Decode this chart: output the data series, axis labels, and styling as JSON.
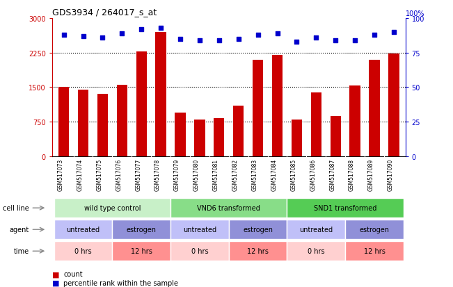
{
  "title": "GDS3934 / 264017_s_at",
  "samples": [
    "GSM517073",
    "GSM517074",
    "GSM517075",
    "GSM517076",
    "GSM517077",
    "GSM517078",
    "GSM517079",
    "GSM517080",
    "GSM517081",
    "GSM517082",
    "GSM517083",
    "GSM517084",
    "GSM517085",
    "GSM517086",
    "GSM517087",
    "GSM517088",
    "GSM517089",
    "GSM517090"
  ],
  "counts": [
    1500,
    1450,
    1350,
    1550,
    2270,
    2700,
    950,
    800,
    830,
    1100,
    2100,
    2200,
    790,
    1380,
    870,
    1530,
    2100,
    2230
  ],
  "percentiles": [
    88,
    87,
    86,
    89,
    92,
    93,
    85,
    84,
    84,
    85,
    88,
    89,
    83,
    86,
    84,
    84,
    88,
    90
  ],
  "ylim_left": [
    0,
    3000
  ],
  "ylim_right": [
    0,
    100
  ],
  "yticks_left": [
    0,
    750,
    1500,
    2250,
    3000
  ],
  "yticks_right": [
    0,
    25,
    50,
    75,
    100
  ],
  "bar_color": "#CC0000",
  "dot_color": "#0000CC",
  "plot_bg": "#ffffff",
  "fig_bg": "#ffffff",
  "tick_label_bg": "#d8d8d8",
  "cell_line_groups": [
    {
      "label": "wild type control",
      "start": 0,
      "end": 6,
      "color": "#c8f0c8"
    },
    {
      "label": "VND6 transformed",
      "start": 6,
      "end": 12,
      "color": "#88dd88"
    },
    {
      "label": "SND1 transformed",
      "start": 12,
      "end": 18,
      "color": "#55cc55"
    }
  ],
  "agent_groups": [
    {
      "label": "untreated",
      "start": 0,
      "end": 3,
      "color": "#c0c0f8"
    },
    {
      "label": "estrogen",
      "start": 3,
      "end": 6,
      "color": "#9090d8"
    },
    {
      "label": "untreated",
      "start": 6,
      "end": 9,
      "color": "#c0c0f8"
    },
    {
      "label": "estrogen",
      "start": 9,
      "end": 12,
      "color": "#9090d8"
    },
    {
      "label": "untreated",
      "start": 12,
      "end": 15,
      "color": "#c0c0f8"
    },
    {
      "label": "estrogen",
      "start": 15,
      "end": 18,
      "color": "#9090d8"
    }
  ],
  "time_groups": [
    {
      "label": "0 hrs",
      "start": 0,
      "end": 3,
      "color": "#ffd0d0"
    },
    {
      "label": "12 hrs",
      "start": 3,
      "end": 6,
      "color": "#ff9090"
    },
    {
      "label": "0 hrs",
      "start": 6,
      "end": 9,
      "color": "#ffd0d0"
    },
    {
      "label": "12 hrs",
      "start": 9,
      "end": 12,
      "color": "#ff9090"
    },
    {
      "label": "0 hrs",
      "start": 12,
      "end": 15,
      "color": "#ffd0d0"
    },
    {
      "label": "12 hrs",
      "start": 15,
      "end": 18,
      "color": "#ff9090"
    }
  ],
  "row_labels": [
    "cell line",
    "agent",
    "time"
  ],
  "gridline_values": [
    750,
    1500,
    2250
  ],
  "legend_count_color": "#CC0000",
  "legend_pct_color": "#0000CC"
}
